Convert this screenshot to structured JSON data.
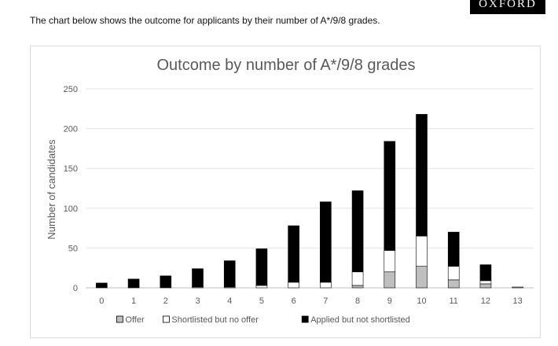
{
  "logo": {
    "text": "OXFORD"
  },
  "intro": "The chart below shows the outcome for applicants by their number of A*/9/8 grades.",
  "chart_data": {
    "type": "bar",
    "stacked": true,
    "title": "Outcome by number of A*/9/8 grades",
    "xlabel": "",
    "ylabel": "Number of candidates",
    "ylim": [
      0,
      250
    ],
    "yticks": [
      0,
      50,
      100,
      150,
      200,
      250
    ],
    "grid": true,
    "legend_position": "bottom",
    "categories": [
      "0",
      "1",
      "2",
      "3",
      "4",
      "5",
      "6",
      "7",
      "8",
      "9",
      "10",
      "11",
      "12",
      "13"
    ],
    "series": [
      {
        "name": "Offer",
        "color": "#bfbfbf",
        "values": [
          0,
          0,
          0,
          0,
          0,
          0,
          0,
          0,
          3,
          20,
          27,
          10,
          5,
          1
        ]
      },
      {
        "name": "Shortlisted but no offer",
        "color": "#ffffff",
        "values": [
          0,
          0,
          0,
          1,
          1,
          3,
          7,
          7,
          17,
          27,
          38,
          17,
          4,
          0
        ]
      },
      {
        "name": "Applied but not shortlisted",
        "color": "#000000",
        "values": [
          6,
          11,
          15,
          23,
          33,
          46,
          71,
          101,
          102,
          137,
          153,
          43,
          20,
          0
        ]
      }
    ]
  }
}
